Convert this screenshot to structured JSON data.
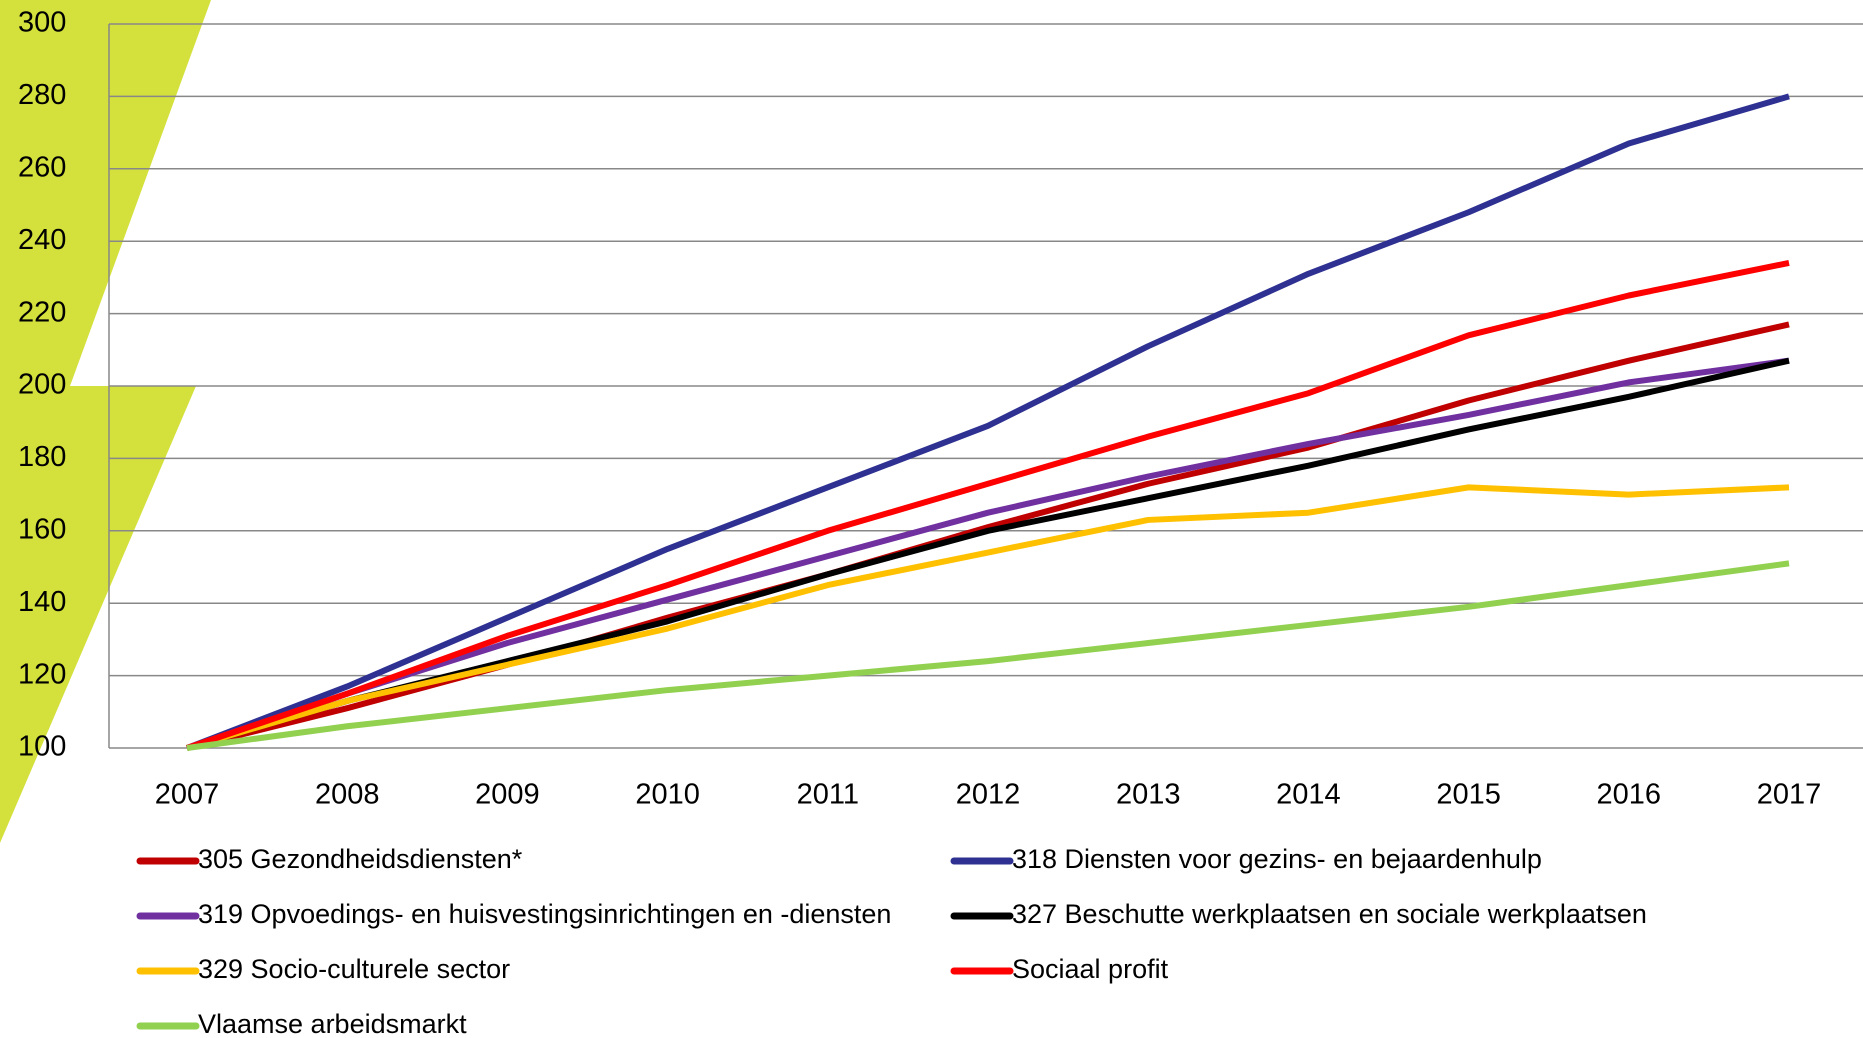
{
  "chart_data": {
    "type": "line",
    "x": [
      2007,
      2008,
      2009,
      2010,
      2011,
      2012,
      2013,
      2014,
      2015,
      2016,
      2017
    ],
    "xlim": [
      2007,
      2017
    ],
    "xticks": [
      2007,
      2008,
      2009,
      2010,
      2011,
      2012,
      2013,
      2014,
      2015,
      2016,
      2017
    ],
    "ylim": [
      100,
      300
    ],
    "yticks": [
      100,
      120,
      140,
      160,
      180,
      200,
      220,
      240,
      260,
      280,
      300
    ],
    "grid": true,
    "legend": "bottom",
    "series": [
      {
        "name": "305 Gezondheidsdiensten*",
        "color": "#c00000",
        "values": [
          100,
          111,
          123,
          136,
          148,
          161,
          173,
          183,
          196,
          207,
          217
        ]
      },
      {
        "name": "318 Diensten voor gezins- en bejaardenhulp",
        "color": "#2e3192",
        "values": [
          100,
          117,
          136,
          155,
          172,
          189,
          211,
          231,
          248,
          267,
          280
        ]
      },
      {
        "name": "319 Opvoedings- en huisvestingsinrichtingen en -diensten",
        "color": "#7030a0",
        "values": [
          100,
          115,
          129,
          141,
          153,
          165,
          175,
          184,
          192,
          201,
          207
        ]
      },
      {
        "name": "327 Beschutte werkplaatsen en sociale werkplaatsen",
        "color": "#000000",
        "values": [
          100,
          113,
          124,
          135,
          148,
          160,
          169,
          178,
          188,
          197,
          207
        ]
      },
      {
        "name": "329 Socio-culturele sector",
        "color": "#ffc000",
        "values": [
          100,
          113,
          123,
          133,
          145,
          154,
          163,
          165,
          172,
          170,
          172
        ]
      },
      {
        "name": "Sociaal profit",
        "color": "#ff0000",
        "values": [
          100,
          115,
          131,
          145,
          160,
          173,
          186,
          198,
          214,
          225,
          234
        ]
      },
      {
        "name": "Vlaamse arbeidsmarkt",
        "color": "#92d050",
        "values": [
          100,
          106,
          111,
          116,
          120,
          124,
          129,
          134,
          139,
          145,
          151
        ]
      }
    ]
  }
}
